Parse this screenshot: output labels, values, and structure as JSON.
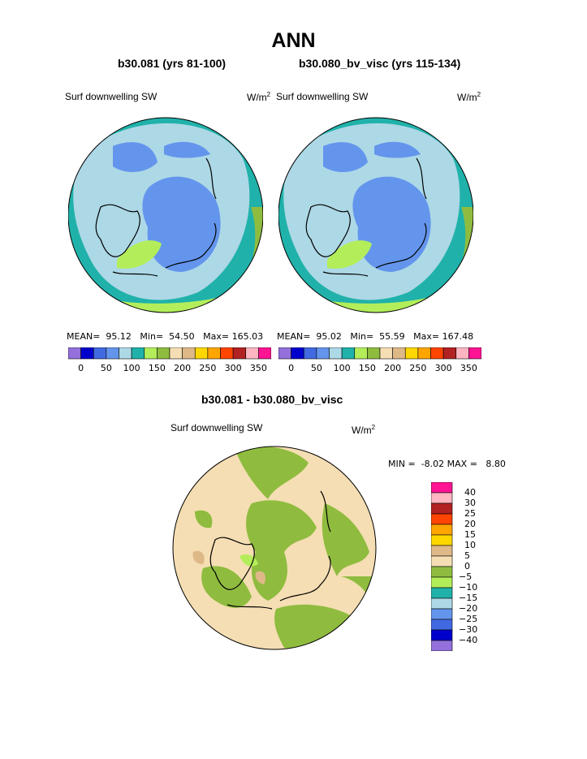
{
  "title": "ANN",
  "panels": [
    {
      "case": "b30.081 (yrs 81-100)",
      "variable": "Surf downwelling SW",
      "units_base": "W/m",
      "units_exp": "2",
      "stats": {
        "mean_label": "MEAN=",
        "mean": "95.12",
        "min_label": "Min=",
        "min": "54.50",
        "max_label": "Max=",
        "max": "165.03"
      }
    },
    {
      "case": "b30.080_bv_visc (yrs 115-134)",
      "variable": "Surf downwelling SW",
      "units_base": "W/m",
      "units_exp": "2",
      "stats": {
        "mean_label": "MEAN=",
        "mean": "95.02",
        "min_label": "Min=",
        "min": "55.59",
        "max_label": "Max=",
        "max": "167.48"
      }
    }
  ],
  "main_colorbar": {
    "colors": [
      "#9370db",
      "#0000cd",
      "#4169e1",
      "#6495ed",
      "#add8e6",
      "#20b2aa",
      "#b3ee5a",
      "#8fbc3f",
      "#f5deb3",
      "#deb887",
      "#ffd700",
      "#ffa500",
      "#ff4500",
      "#b22222",
      "#ffb6c1",
      "#ff1493"
    ],
    "labels": [
      "0",
      "50",
      "100",
      "150",
      "200",
      "250",
      "300",
      "350"
    ]
  },
  "difference": {
    "title": "b30.081 - b30.080_bv_visc",
    "variable": "Surf downwelling SW",
    "units_base": "W/m",
    "units_exp": "2",
    "min_label": "MIN =",
    "min": "-8.02",
    "max_label": "MAX =",
    "max": "8.80",
    "colorbar": {
      "colors": [
        "#ff1493",
        "#ffb6c1",
        "#b22222",
        "#ff4500",
        "#ffa500",
        "#ffd700",
        "#deb887",
        "#f5deb3",
        "#8fbc3f",
        "#b3ee5a",
        "#20b2aa",
        "#add8e6",
        "#6495ed",
        "#4169e1",
        "#0000cd",
        "#9370db"
      ],
      "labels": [
        "40",
        "30",
        "25",
        "20",
        "15",
        "10",
        "5",
        "0",
        "−5",
        "−10",
        "−15",
        "−20",
        "−25",
        "−30",
        "−40"
      ]
    }
  },
  "map_colors": {
    "ocean_outer": "#b3ee5a",
    "teal": "#20b2aa",
    "light_blue": "#add8e6",
    "mid_blue": "#6495ed",
    "diff_base": "#f5deb3",
    "diff_green": "#8fbc3f",
    "diff_light_green": "#b3ee5a",
    "diff_tan": "#deb887",
    "coast": "#000000"
  }
}
